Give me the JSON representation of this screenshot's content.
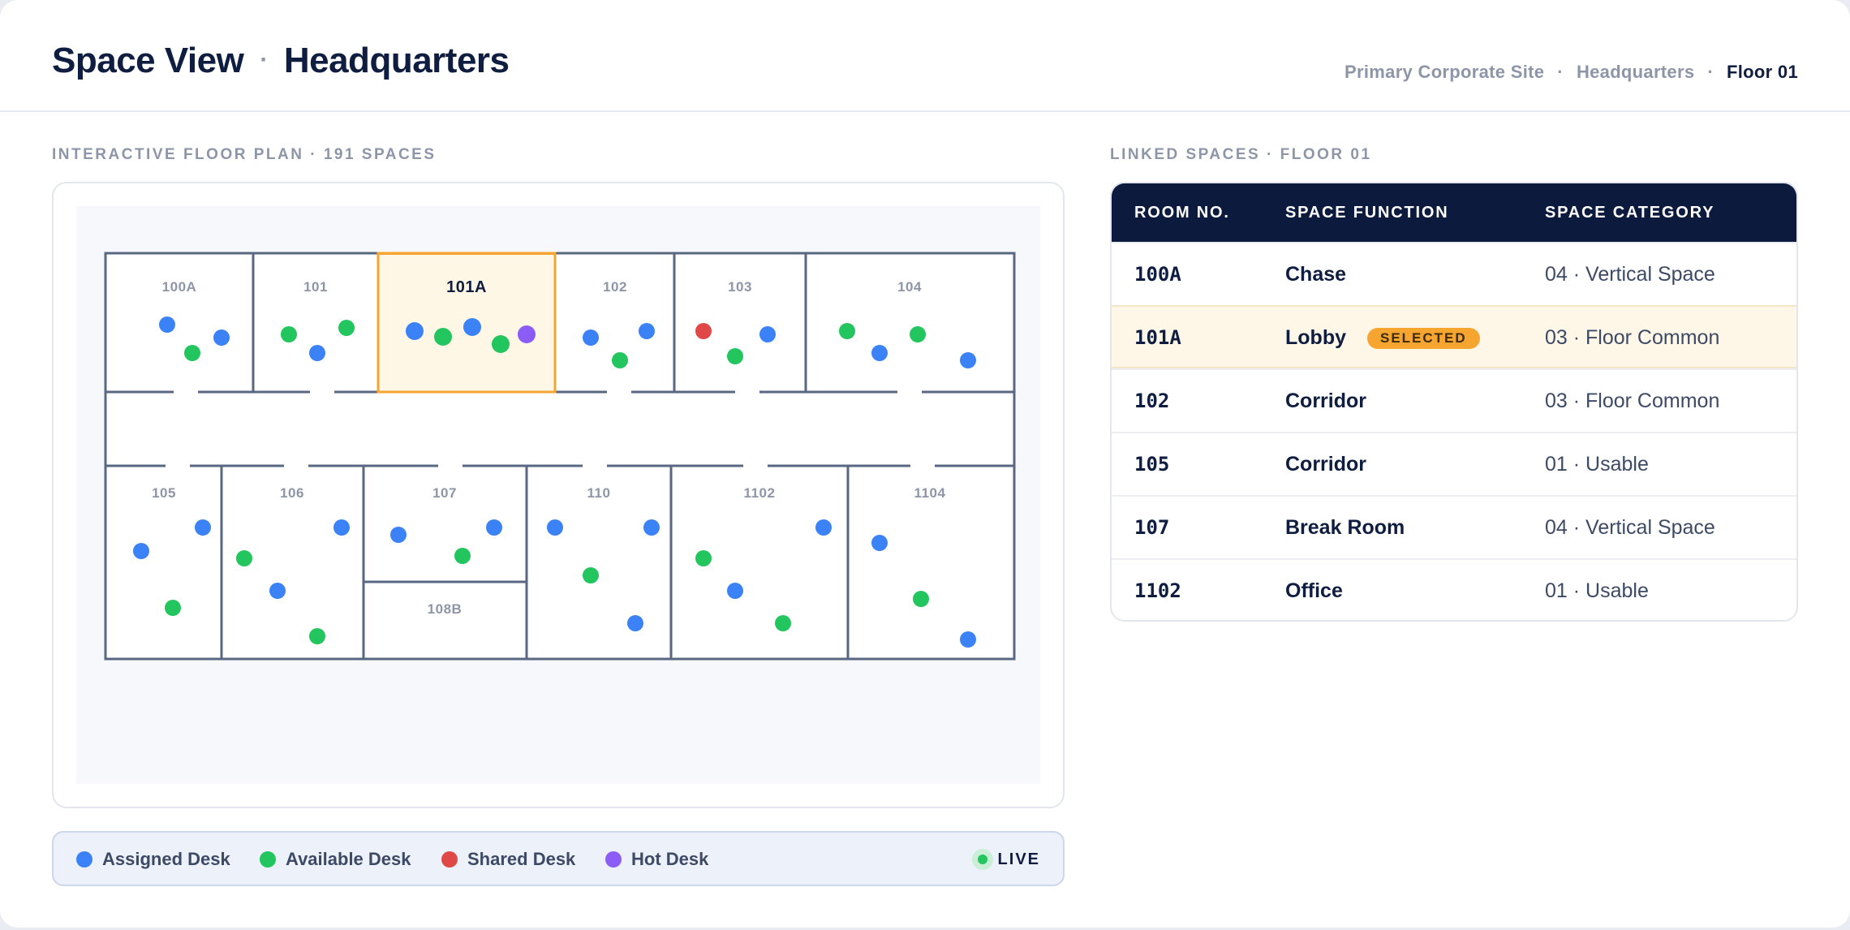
{
  "header": {
    "title_main": "Space View",
    "title_separator": "·",
    "title_site": "Headquarters",
    "breadcrumbs": [
      {
        "label": "Primary Corporate Site"
      },
      {
        "label": "Headquarters"
      },
      {
        "label": "Floor 01"
      }
    ],
    "breadcrumb_separator": "·"
  },
  "floor_plan": {
    "section_label": "INTERACTIVE FLOOR PLAN · 191 SPACES",
    "selected_room": "101A",
    "rooms": [
      {
        "label": "100A"
      },
      {
        "label": "101"
      },
      {
        "label": "101A"
      },
      {
        "label": "102"
      },
      {
        "label": "103"
      },
      {
        "label": "104"
      },
      {
        "label": "105"
      },
      {
        "label": "106"
      },
      {
        "label": "107"
      },
      {
        "label": "108B"
      },
      {
        "label": "110"
      },
      {
        "label": "1102"
      },
      {
        "label": "1104"
      }
    ]
  },
  "legend": {
    "items": [
      {
        "label": "Assigned Desk",
        "color": "#3b82f6"
      },
      {
        "label": "Available Desk",
        "color": "#22c55e"
      },
      {
        "label": "Shared Desk",
        "color": "#e04848"
      },
      {
        "label": "Hot Desk",
        "color": "#8b5cf6"
      }
    ],
    "status": "LIVE"
  },
  "linked_spaces": {
    "section_label": "LINKED SPACES · FLOOR 01",
    "columns": [
      "ROOM NO.",
      "SPACE FUNCTION",
      "SPACE CATEGORY"
    ],
    "selected_badge": "SELECTED",
    "rows": [
      {
        "room": "100A",
        "function": "Chase",
        "category": "04 · Vertical Space"
      },
      {
        "room": "101A",
        "function": "Lobby",
        "category": "03 · Floor Common",
        "selected": true
      },
      {
        "room": "102",
        "function": "Corridor",
        "category": "03 · Floor Common"
      },
      {
        "room": "105",
        "function": "Corridor",
        "category": "01 · Usable"
      },
      {
        "room": "107",
        "function": "Break Room",
        "category": "04 · Vertical Space"
      },
      {
        "room": "1102",
        "function": "Office",
        "category": "01 · Usable"
      }
    ]
  },
  "colors": {
    "accent": "#f6a531",
    "navy": "#0c1a3e",
    "wall": "#5a6782"
  }
}
